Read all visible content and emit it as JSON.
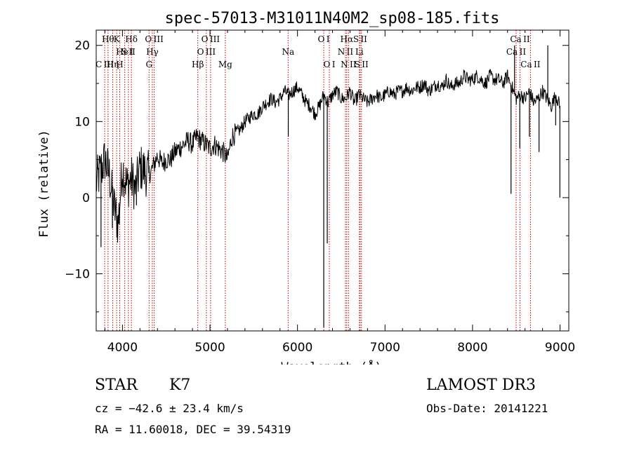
{
  "chart_data": {
    "type": "line",
    "title": "spec-57013-M31011N40M2_sp08-185.fits",
    "xlabel": "Wavelength (Å)",
    "ylabel": "Flux (relative)",
    "xlim": [
      3700,
      9100
    ],
    "ylim": [
      -17.5,
      22
    ],
    "xticks": [
      4000,
      5000,
      6000,
      7000,
      8000,
      9000
    ],
    "yticks": [
      -10,
      0,
      10,
      20
    ],
    "ytick_labels": [
      "−10",
      "0",
      "10",
      "20"
    ],
    "line_color": "#000000",
    "marker_color": "#c00000",
    "series": [
      {
        "name": "spectrum",
        "x": [
          3700,
          3750,
          3800,
          3850,
          3900,
          3950,
          4000,
          4050,
          4100,
          4150,
          4200,
          4250,
          4300,
          4350,
          4400,
          4450,
          4500,
          4550,
          4600,
          4650,
          4700,
          4750,
          4800,
          4850,
          4900,
          4950,
          5000,
          5050,
          5100,
          5150,
          5200,
          5250,
          5300,
          5350,
          5400,
          5450,
          5500,
          5550,
          5600,
          5650,
          5700,
          5750,
          5800,
          5850,
          5900,
          5950,
          6000,
          6050,
          6100,
          6150,
          6200,
          6250,
          6300,
          6350,
          6400,
          6450,
          6500,
          6550,
          6600,
          6650,
          6700,
          6750,
          6800,
          6850,
          6900,
          6950,
          7000,
          7050,
          7100,
          7150,
          7200,
          7250,
          7300,
          7350,
          7400,
          7450,
          7500,
          7550,
          7600,
          7650,
          7700,
          7750,
          7800,
          7850,
          7900,
          7950,
          8000,
          8050,
          8100,
          8150,
          8200,
          8250,
          8300,
          8350,
          8400,
          8450,
          8500,
          8550,
          8600,
          8650,
          8700,
          8750,
          8800,
          8850,
          8900,
          8950,
          9000
        ],
        "y": [
          2.0,
          3.5,
          5.0,
          3.0,
          -1.0,
          -3.5,
          4.0,
          1.5,
          2.5,
          1.0,
          4.0,
          3.5,
          3.0,
          4.0,
          5.5,
          4.5,
          5.0,
          5.0,
          6.0,
          6.5,
          7.0,
          7.5,
          7.0,
          8.0,
          7.5,
          7.0,
          6.5,
          7.0,
          6.5,
          6.0,
          5.0,
          8.0,
          8.5,
          9.0,
          10.0,
          10.5,
          11.0,
          11.0,
          12.0,
          12.5,
          13.0,
          12.5,
          13.0,
          14.0,
          13.5,
          14.0,
          14.5,
          13.5,
          12.5,
          12.0,
          11.0,
          12.0,
          13.5,
          12.5,
          13.5,
          14.0,
          13.0,
          13.0,
          14.0,
          12.5,
          13.5,
          13.0,
          12.5,
          13.0,
          13.5,
          13.0,
          13.5,
          14.0,
          13.5,
          14.0,
          14.0,
          14.5,
          14.0,
          14.5,
          14.5,
          15.0,
          14.0,
          14.5,
          15.0,
          14.5,
          15.5,
          14.5,
          15.0,
          15.0,
          16.0,
          15.5,
          15.5,
          16.0,
          15.5,
          15.0,
          16.0,
          15.5,
          15.5,
          15.0,
          16.0,
          14.5,
          13.0,
          13.5,
          13.0,
          14.0,
          12.5,
          13.0,
          14.0,
          13.0,
          12.0,
          13.5,
          12.0
        ],
        "spikes": [
          {
            "x": 3755,
            "y": -6.5
          },
          {
            "x": 3885,
            "y": -4.0
          },
          {
            "x": 3965,
            "y": -3.5
          },
          {
            "x": 4160,
            "y": -1.0
          },
          {
            "x": 5895,
            "y": 8.0
          },
          {
            "x": 6300,
            "y": -17.0
          },
          {
            "x": 6340,
            "y": -6.0
          },
          {
            "x": 8440,
            "y": 0.5
          },
          {
            "x": 8480,
            "y": 20.0
          },
          {
            "x": 8540,
            "y": 6.5
          },
          {
            "x": 8650,
            "y": 8.0
          },
          {
            "x": 8760,
            "y": 6.0
          },
          {
            "x": 8860,
            "y": 20.0
          },
          {
            "x": 8950,
            "y": 9.5
          },
          {
            "x": 8998,
            "y": 0.0
          }
        ]
      }
    ],
    "line_markers": [
      {
        "x": 3797,
        "label": "C III",
        "row": 2
      },
      {
        "x": 3835,
        "label": "Hθ",
        "row": 0
      },
      {
        "x": 3889,
        "label": "Hη",
        "row": 2
      },
      {
        "x": 3934,
        "label": "K",
        "row": 0
      },
      {
        "x": 3969,
        "label": "H",
        "row": 2
      },
      {
        "x": 4026,
        "label": "He I",
        "row": 1
      },
      {
        "x": 4068,
        "label": "S II",
        "row": 1
      },
      {
        "x": 4102,
        "label": "Hδ",
        "row": 0
      },
      {
        "x": 4304,
        "label": "G",
        "row": 2
      },
      {
        "x": 4341,
        "label": "Hγ",
        "row": 1
      },
      {
        "x": 4363,
        "label": "O III",
        "row": 0
      },
      {
        "x": 4861,
        "label": "Hβ",
        "row": 2
      },
      {
        "x": 4959,
        "label": "O III",
        "row": 1
      },
      {
        "x": 5007,
        "label": "O III",
        "row": 0
      },
      {
        "x": 5175,
        "label": "Mg",
        "row": 2
      },
      {
        "x": 5893,
        "label": "Na",
        "row": 1
      },
      {
        "x": 6300,
        "label": "O I",
        "row": 0
      },
      {
        "x": 6364,
        "label": "O I",
        "row": 2
      },
      {
        "x": 6548,
        "label": "N II",
        "row": 1
      },
      {
        "x": 6563,
        "label": "Hα",
        "row": 0
      },
      {
        "x": 6583,
        "label": "N II",
        "row": 2
      },
      {
        "x": 6707,
        "label": "Li",
        "row": 1
      },
      {
        "x": 6716,
        "label": "S II",
        "row": 0
      },
      {
        "x": 6731,
        "label": "S II",
        "row": 2
      },
      {
        "x": 8498,
        "label": "Ca II",
        "row": 1
      },
      {
        "x": 8542,
        "label": "Ca II",
        "row": 0
      },
      {
        "x": 8662,
        "label": "Ca II",
        "row": 2
      }
    ]
  },
  "info": {
    "class_label": "STAR",
    "subclass": "K7",
    "survey": "LAMOST DR3",
    "cz": "cz = −42.6 ± 23.4 km/s",
    "obs_date": "Obs-Date: 20141221",
    "coords": "RA =  11.60018, DEC =  39.54319"
  }
}
